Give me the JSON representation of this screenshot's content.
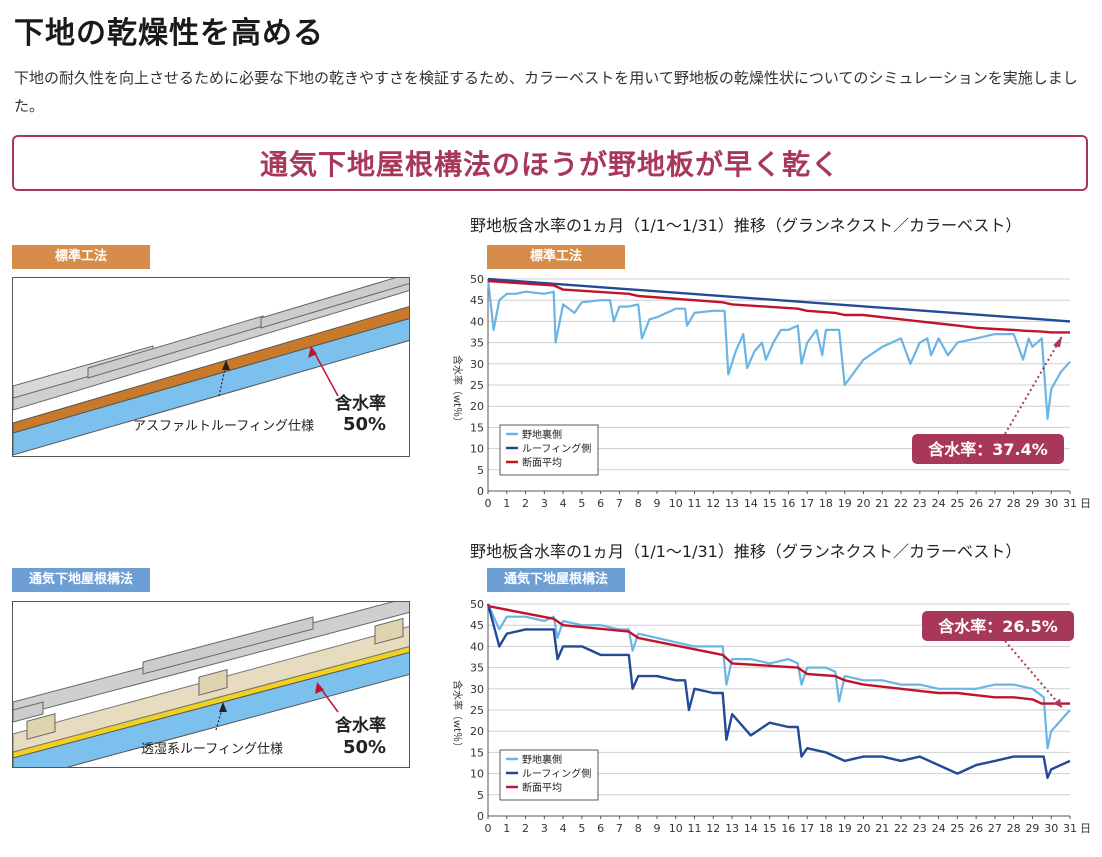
{
  "heading": "下地の乾燥性を高める",
  "lead": "下地の耐久性を向上させるために必要な下地の乾きやすさを検証するため、カラーベストを用いて野地板の乾燥性状についてのシミュレーションを実施しました。",
  "banner": "通気下地屋根構法のほうが野地板が早く乾く",
  "sections": [
    {
      "method_tag": "標準工法",
      "diagram_label": "アスファルトルーフィング仕様",
      "moisture_label": "含水率",
      "moisture_value": "50%"
    },
    {
      "method_tag": "通気下地屋根構法",
      "diagram_label": "透湿系ルーフィング仕様",
      "moisture_label": "含水率",
      "moisture_value": "50%"
    }
  ],
  "colors": {
    "accent": "#a8385a",
    "light_blue_series": "#6ab4e6",
    "navy_series": "#234a96",
    "red_series": "#c0142c",
    "std_tag": "#d68c4a",
    "vent_tag": "#6e9fd4"
  },
  "chart_data": [
    {
      "type": "line",
      "title": "野地板含水率の1ヵ月（1/1〜1/31）推移（グランネクスト／カラーベスト）",
      "panel_tag": "標準工法",
      "ylabel": "含水率（wt％）",
      "xunit": "日",
      "xlim": [
        0,
        31
      ],
      "ylim": [
        0,
        50
      ],
      "xticks": [
        "0",
        "1",
        "2",
        "3",
        "4",
        "5",
        "6",
        "7",
        "8",
        "9",
        "10",
        "11",
        "12",
        "13",
        "14",
        "15",
        "16",
        "17",
        "18",
        "19",
        "20",
        "21",
        "22",
        "23",
        "24",
        "25",
        "26",
        "27",
        "28",
        "29",
        "30",
        "31"
      ],
      "yticks": [
        "0",
        "5",
        "10",
        "15",
        "20",
        "25",
        "30",
        "35",
        "40",
        "45",
        "50"
      ],
      "grid": true,
      "legend_position": "bottom-left",
      "series": [
        {
          "name": "野地裏側",
          "color": "#6ab4e6",
          "x": [
            0,
            0.3,
            0.6,
            1,
            1.5,
            2,
            3,
            3.5,
            3.6,
            4,
            4.6,
            5,
            6,
            6.5,
            6.7,
            7,
            7.5,
            8,
            8.2,
            8.6,
            9,
            10,
            10.5,
            10.6,
            11,
            12,
            12.6,
            12.8,
            13.2,
            13.6,
            13.8,
            14.2,
            14.6,
            14.8,
            15.2,
            15.6,
            16,
            16.5,
            16.7,
            17,
            17.5,
            17.8,
            18,
            18.7,
            19,
            20,
            21,
            21.5,
            22,
            22.5,
            23,
            23.4,
            23.6,
            24,
            24.5,
            25,
            26,
            27,
            28,
            28.5,
            28.8,
            29,
            29.5,
            29.8,
            30,
            30.5,
            31
          ],
          "y": [
            50,
            38,
            45,
            46.5,
            46.5,
            47,
            46.5,
            47,
            35,
            44,
            42,
            44.5,
            45,
            45,
            40,
            43.5,
            43.5,
            44,
            36,
            40.5,
            41,
            43,
            43,
            39,
            42,
            42.5,
            42.5,
            27.5,
            33,
            37,
            29,
            33,
            35,
            31,
            35,
            38,
            38,
            39,
            30,
            35,
            38,
            32,
            38,
            38,
            25,
            31,
            34,
            35,
            36,
            30,
            35,
            36,
            32,
            36,
            32,
            35,
            36,
            37,
            37,
            31,
            36,
            34,
            36,
            17,
            24,
            28,
            30.5
          ]
        },
        {
          "name": "ルーフィング側",
          "color": "#234a96",
          "x": [
            0,
            31
          ],
          "y": [
            50,
            40
          ]
        },
        {
          "name": "断面平均",
          "color": "#c0142c",
          "x": [
            0,
            3.5,
            4,
            7.5,
            8,
            12.5,
            13,
            16.5,
            17,
            18.5,
            19,
            20,
            21,
            22,
            23,
            24,
            25,
            26,
            27,
            28,
            28.5,
            29.5,
            30,
            31
          ],
          "y": [
            49.5,
            48.5,
            47.5,
            46.5,
            46,
            44.5,
            44,
            43,
            42.5,
            42,
            41.5,
            41.5,
            41,
            40.5,
            40,
            39.5,
            39,
            38.5,
            38.2,
            38,
            37.8,
            37.6,
            37.4,
            37.4
          ]
        }
      ],
      "annotation": "含水率：37.4%"
    },
    {
      "type": "line",
      "title": "野地板含水率の1ヵ月（1/1〜1/31）推移（グランネクスト／カラーベスト）",
      "panel_tag": "通気下地屋根構法",
      "ylabel": "含水率（wt％）",
      "xunit": "日",
      "xlim": [
        0,
        31
      ],
      "ylim": [
        0,
        50
      ],
      "xticks": [
        "0",
        "1",
        "2",
        "3",
        "4",
        "5",
        "6",
        "7",
        "8",
        "9",
        "10",
        "11",
        "12",
        "13",
        "14",
        "15",
        "16",
        "17",
        "18",
        "19",
        "20",
        "21",
        "22",
        "23",
        "24",
        "25",
        "26",
        "27",
        "28",
        "29",
        "30",
        "31"
      ],
      "yticks": [
        "0",
        "5",
        "10",
        "15",
        "20",
        "25",
        "30",
        "35",
        "40",
        "45",
        "50"
      ],
      "grid": true,
      "legend_position": "bottom-left",
      "series": [
        {
          "name": "野地裏側",
          "color": "#6ab4e6",
          "x": [
            0,
            0.6,
            1,
            2,
            3,
            3.5,
            3.7,
            4,
            5,
            6,
            7,
            7.5,
            7.7,
            8,
            9,
            10,
            11,
            12,
            12.5,
            12.7,
            13,
            14,
            15,
            16,
            16.5,
            16.7,
            17,
            18,
            18.5,
            18.7,
            19,
            20,
            21,
            22,
            23,
            24,
            25,
            26,
            27,
            28,
            29,
            29.6,
            29.8,
            30,
            31
          ],
          "y": [
            50,
            44,
            47,
            47,
            46,
            47,
            42,
            46,
            45,
            45,
            44,
            44,
            39,
            43,
            42,
            41,
            40,
            40,
            40,
            31,
            37,
            37,
            36,
            37,
            36,
            31,
            35,
            35,
            34,
            27,
            33,
            32,
            32,
            31,
            31,
            30,
            30,
            30,
            31,
            31,
            30,
            28,
            16,
            20,
            25
          ]
        },
        {
          "name": "ルーフィング側",
          "color": "#234a96",
          "x": [
            0,
            0.6,
            1,
            2,
            3,
            3.5,
            3.7,
            4,
            5,
            6,
            7,
            7.5,
            7.7,
            8,
            9,
            10,
            10.5,
            10.7,
            11,
            12,
            12.5,
            12.7,
            13,
            14,
            15,
            16,
            16.5,
            16.7,
            17,
            18,
            19,
            20,
            21,
            22,
            23,
            24,
            25,
            26,
            27,
            28,
            29,
            29.6,
            29.8,
            30,
            31
          ],
          "y": [
            50,
            40,
            43,
            44,
            44,
            44,
            37,
            40,
            40,
            38,
            38,
            38,
            30,
            33,
            33,
            32,
            32,
            25,
            30,
            29,
            29,
            18,
            24,
            19,
            22,
            21,
            21,
            14,
            16,
            15,
            13,
            14,
            14,
            13,
            14,
            12,
            10,
            12,
            13,
            14,
            14,
            14,
            9,
            11,
            13
          ]
        },
        {
          "name": "断面平均",
          "color": "#c0142c",
          "x": [
            0,
            3.5,
            4,
            7.5,
            8,
            12.5,
            13,
            16.5,
            17,
            18.5,
            19,
            20,
            21,
            22,
            23,
            24,
            25,
            26,
            27,
            28,
            29,
            29.5,
            30,
            31
          ],
          "y": [
            49.5,
            46.5,
            45,
            43.5,
            42,
            38,
            36,
            35,
            33.5,
            33,
            32,
            31,
            30.5,
            30,
            29.5,
            29,
            29,
            28.5,
            28,
            28,
            27.5,
            26.5,
            26.5,
            26.5
          ]
        }
      ],
      "annotation": "含水率：26.5%"
    }
  ]
}
